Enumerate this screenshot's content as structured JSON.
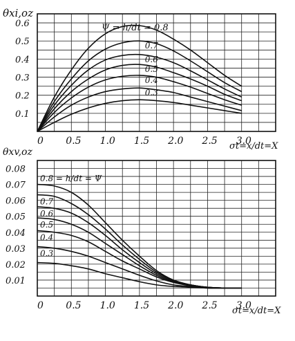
{
  "chart_data": [
    {
      "type": "line",
      "ylabel": "θxi,oz",
      "xlabel": "σt=x/dt=X",
      "legend_title": "Ψ = h/dt = 0.8",
      "x_ticks": [
        "0",
        "0.5",
        "1.0",
        "1.5",
        "2.0",
        "2.5",
        "3.0"
      ],
      "y_ticks": [
        "0.1",
        "0.2",
        "0.3",
        "0.4",
        "0.5",
        "0.6"
      ],
      "xlim": [
        0,
        3.5
      ],
      "ylim": [
        0,
        0.65
      ],
      "x": [
        0,
        0.25,
        0.5,
        0.75,
        1.0,
        1.25,
        1.5,
        1.75,
        2.0,
        2.25,
        2.5,
        2.75,
        3.0
      ],
      "series": [
        {
          "name": "0.8",
          "values": [
            0.0,
            0.19,
            0.34,
            0.46,
            0.54,
            0.58,
            0.585,
            0.56,
            0.51,
            0.45,
            0.38,
            0.31,
            0.25
          ]
        },
        {
          "name": "0.7",
          "values": [
            0.0,
            0.165,
            0.29,
            0.39,
            0.455,
            0.49,
            0.5,
            0.485,
            0.445,
            0.39,
            0.33,
            0.27,
            0.22
          ]
        },
        {
          "name": "0.6",
          "values": [
            0.0,
            0.145,
            0.255,
            0.34,
            0.395,
            0.42,
            0.425,
            0.41,
            0.38,
            0.335,
            0.285,
            0.235,
            0.19
          ]
        },
        {
          "name": "0.5",
          "values": [
            0.0,
            0.125,
            0.22,
            0.29,
            0.34,
            0.365,
            0.37,
            0.355,
            0.325,
            0.29,
            0.25,
            0.205,
            0.17
          ]
        },
        {
          "name": "0.4",
          "values": [
            0.0,
            0.105,
            0.185,
            0.245,
            0.285,
            0.305,
            0.31,
            0.3,
            0.275,
            0.245,
            0.21,
            0.175,
            0.145
          ]
        },
        {
          "name": "0.3",
          "values": [
            0.0,
            0.08,
            0.145,
            0.19,
            0.22,
            0.235,
            0.24,
            0.23,
            0.215,
            0.19,
            0.165,
            0.14,
            0.115
          ]
        },
        {
          "name": "",
          "values": [
            0.0,
            0.05,
            0.095,
            0.13,
            0.155,
            0.17,
            0.175,
            0.17,
            0.16,
            0.145,
            0.13,
            0.115,
            0.1
          ]
        }
      ]
    },
    {
      "type": "line",
      "ylabel": "θxv,oz",
      "xlabel": "σt=x/dt=X",
      "legend_title": "0.8 = h/dt = Ψ",
      "x_ticks": [
        "0",
        "0.5",
        "1.0",
        "1.5",
        "2.0",
        "2.5",
        "3.0"
      ],
      "y_ticks": [
        "0.01",
        "0.02",
        "0.03",
        "0.04",
        "0.05",
        "0.06",
        "0.07",
        "0.08"
      ],
      "xlim": [
        0,
        3.5
      ],
      "ylim": [
        0,
        0.085
      ],
      "x": [
        0,
        0.25,
        0.5,
        0.75,
        1.0,
        1.25,
        1.5,
        1.75,
        2.0,
        2.25,
        2.5,
        2.75,
        3.0
      ],
      "series": [
        {
          "name": "0.8",
          "values": [
            0.07,
            0.069,
            0.065,
            0.057,
            0.046,
            0.035,
            0.025,
            0.016,
            0.01,
            0.007,
            0.0055,
            0.005,
            0.005
          ]
        },
        {
          "name": "0.7",
          "values": [
            0.0635,
            0.0625,
            0.058,
            0.051,
            0.042,
            0.032,
            0.023,
            0.015,
            0.01,
            0.007,
            0.0055,
            0.005,
            0.005
          ]
        },
        {
          "name": "0.6",
          "values": [
            0.056,
            0.055,
            0.052,
            0.046,
            0.038,
            0.029,
            0.021,
            0.014,
            0.0095,
            0.007,
            0.0055,
            0.005,
            0.005
          ]
        },
        {
          "name": "0.5",
          "values": [
            0.049,
            0.048,
            0.045,
            0.04,
            0.033,
            0.026,
            0.019,
            0.013,
            0.009,
            0.007,
            0.0055,
            0.005,
            0.005
          ]
        },
        {
          "name": "0.4",
          "values": [
            0.041,
            0.04,
            0.038,
            0.034,
            0.028,
            0.022,
            0.017,
            0.012,
            0.0085,
            0.0065,
            0.0055,
            0.005,
            0.005
          ]
        },
        {
          "name": "0.3",
          "values": [
            0.031,
            0.03,
            0.028,
            0.025,
            0.021,
            0.017,
            0.013,
            0.0095,
            0.007,
            0.006,
            0.005,
            0.005,
            0.005
          ]
        },
        {
          "name": "",
          "values": [
            0.021,
            0.0205,
            0.019,
            0.017,
            0.014,
            0.0115,
            0.009,
            0.007,
            0.006,
            0.0055,
            0.005,
            0.005,
            0.005
          ]
        }
      ]
    }
  ]
}
